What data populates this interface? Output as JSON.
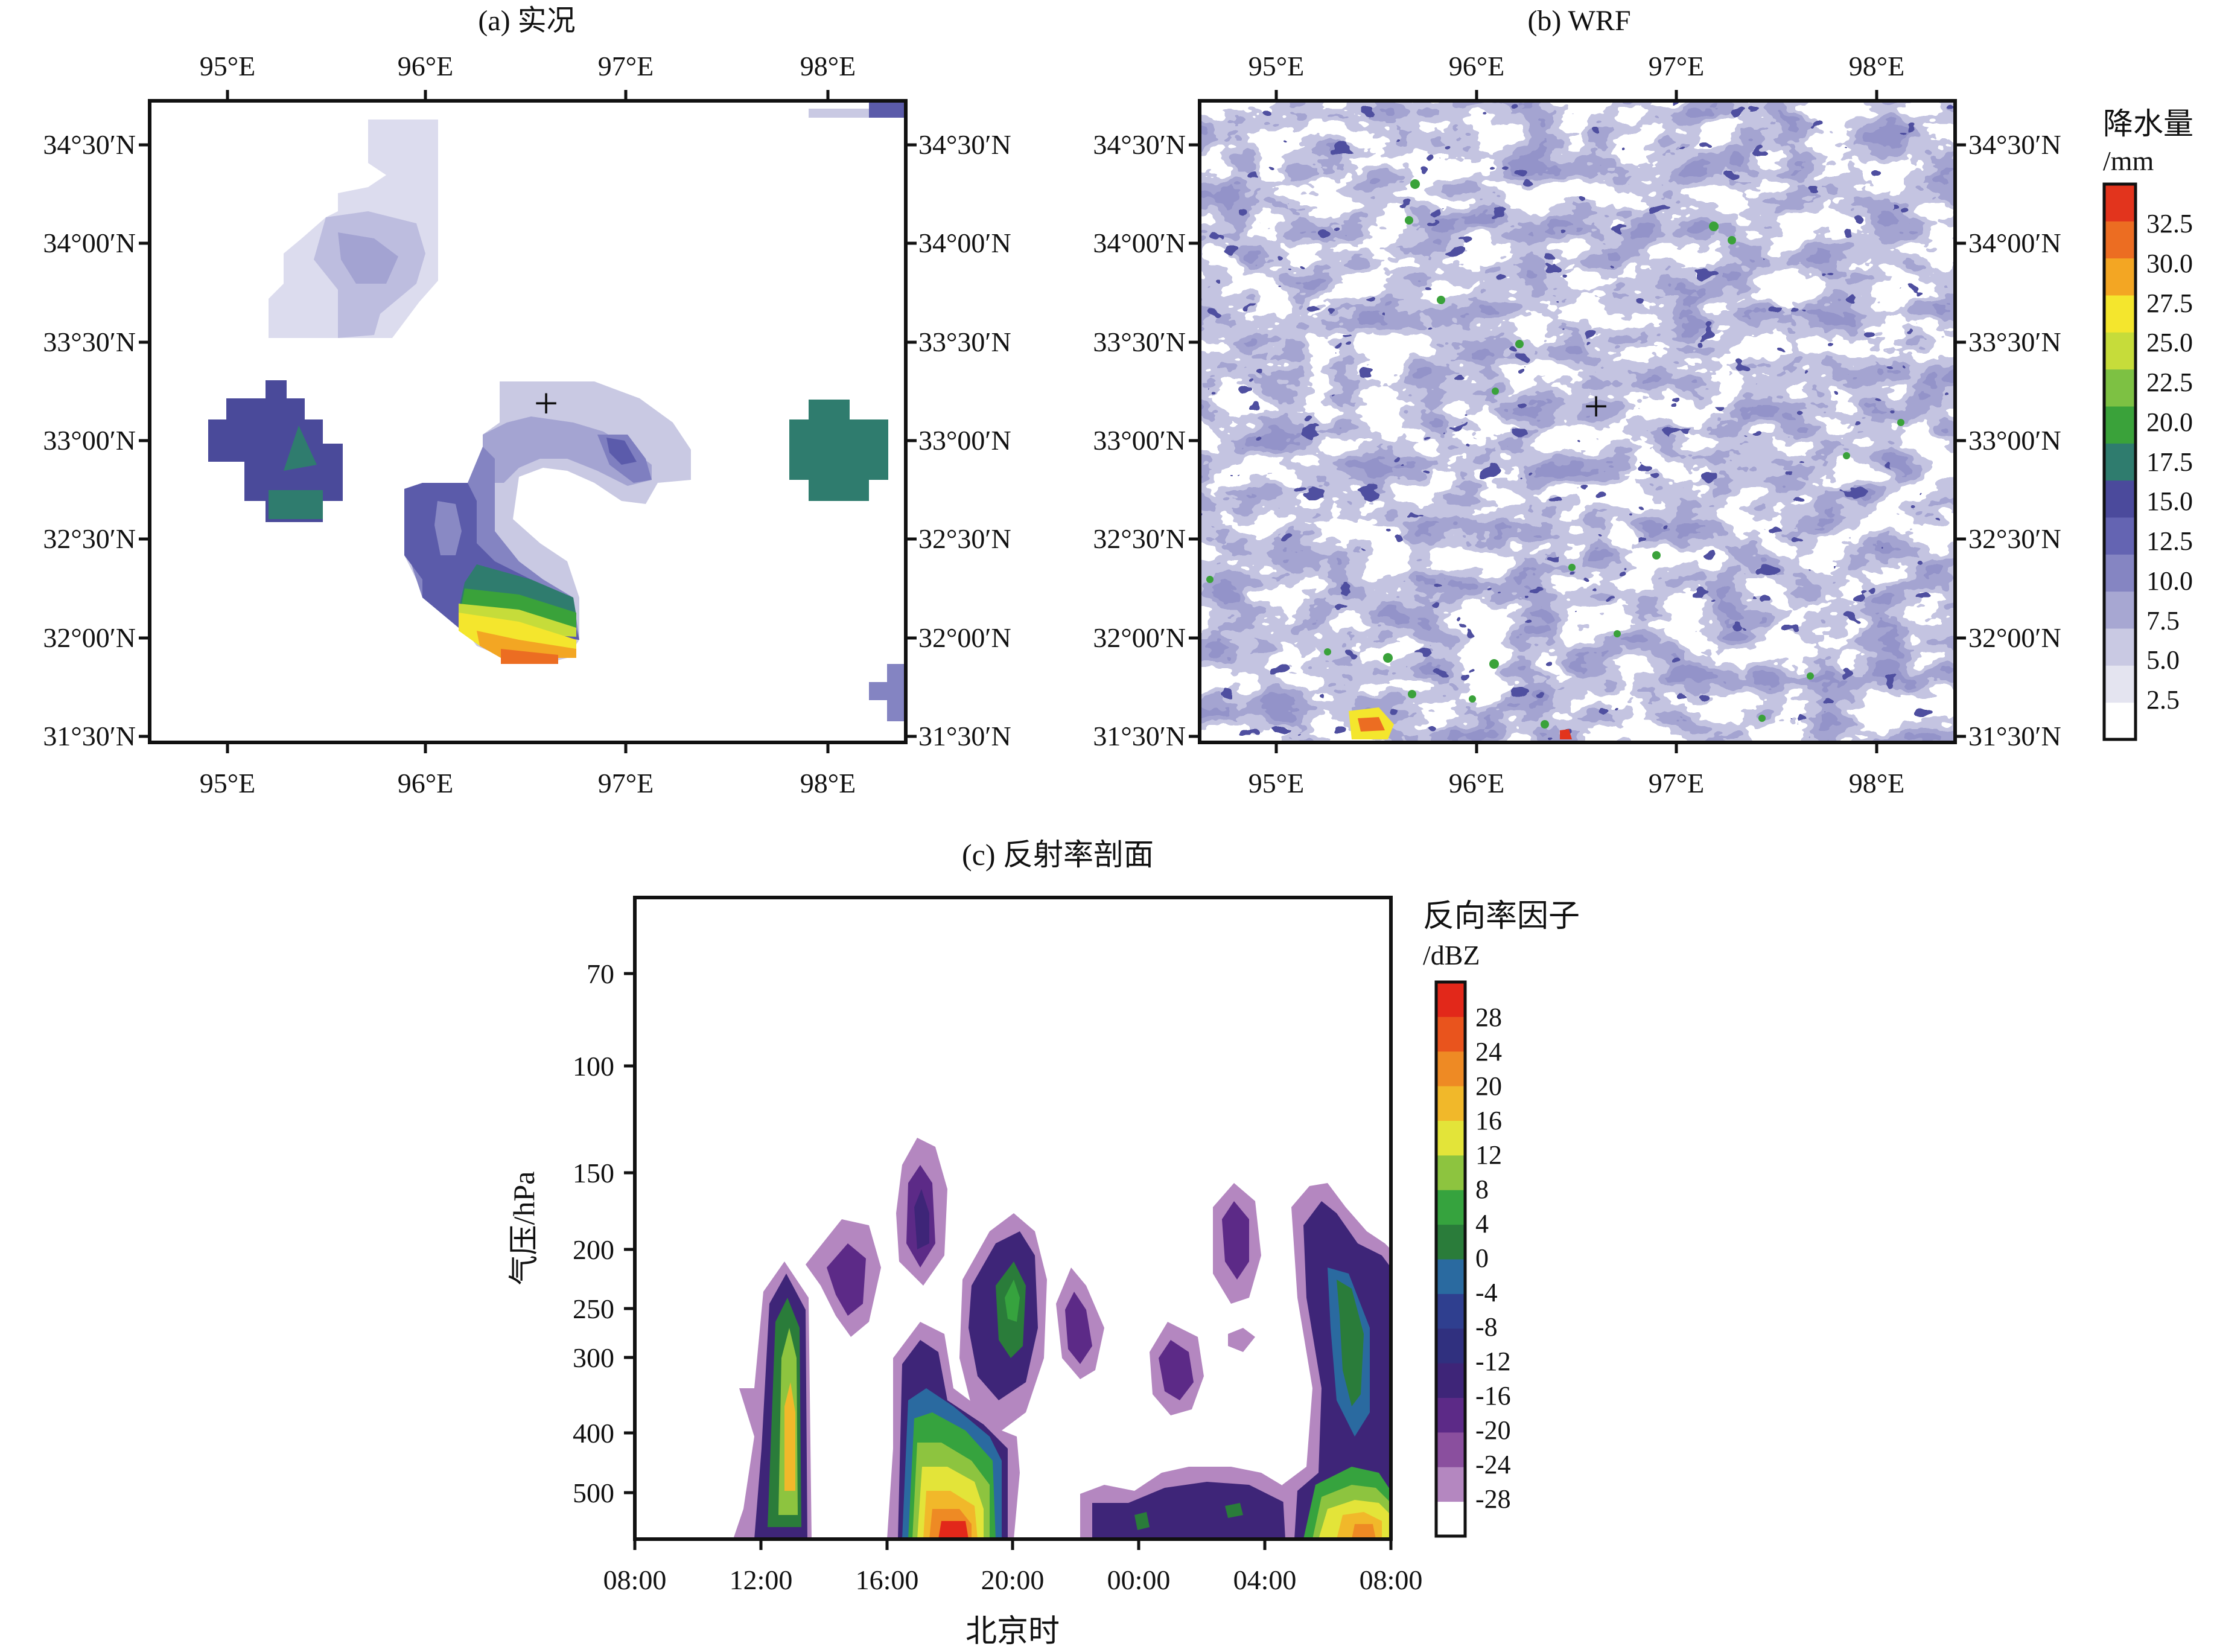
{
  "figure": {
    "font_note": "",
    "colors": {
      "frame": "#111111",
      "precip_scale": [
        "#ffffff",
        "#e4e4f0",
        "#c9c9e3",
        "#a7a7d2",
        "#8585c2",
        "#6464b2",
        "#4b4a9c",
        "#2f7c6e",
        "#3aa23a",
        "#7dc143",
        "#c6dc3a",
        "#f4e62d",
        "#f3a623",
        "#ec6d22",
        "#e2341d"
      ],
      "refl_scale": [
        "#ffffff",
        "#b487c0",
        "#8a4f9e",
        "#5c2a87",
        "#3e2578",
        "#30307f",
        "#2f3f8f",
        "#2a6aa0",
        "#2a7c3a",
        "#36a33e",
        "#8dc43f",
        "#e3e439",
        "#f1b82a",
        "#ee8a24",
        "#e9541d",
        "#e2281a"
      ]
    },
    "marker_symbol": "+"
  },
  "panel_a": {
    "title": "(a) 实况",
    "xticks": [
      "95°E",
      "96°E",
      "97°E",
      "98°E"
    ],
    "yticks": [
      "34°30′N",
      "34°00′N",
      "33°30′N",
      "33°00′N",
      "32°30′N",
      "32°00′N",
      "31°30′N"
    ]
  },
  "panel_b": {
    "title": "(b) WRF",
    "xticks": [
      "95°E",
      "96°E",
      "97°E",
      "98°E"
    ],
    "yticks": [
      "34°30′N",
      "34°00′N",
      "33°30′N",
      "33°00′N",
      "32°30′N",
      "32°00′N",
      "31°30′N"
    ],
    "colorbar": {
      "title_line1": "降水量",
      "title_line2": "/mm",
      "labels": [
        "32.5",
        "30.0",
        "27.5",
        "25.0",
        "22.5",
        "20.0",
        "17.5",
        "15.0",
        "12.5",
        "10.0",
        "7.5",
        "5.0",
        "2.5"
      ]
    }
  },
  "panel_c": {
    "title": "(c) 反射率剖面",
    "xlabel": "北京时",
    "ylabel": "气压/hPa",
    "xticks": [
      "08:00",
      "12:00",
      "16:00",
      "20:00",
      "00:00",
      "04:00",
      "08:00"
    ],
    "yticks": [
      "70",
      "100",
      "150",
      "200",
      "250",
      "300",
      "400",
      "500"
    ],
    "colorbar": {
      "title_line1": "反向率因子",
      "title_line2": "/dBZ",
      "labels": [
        "28",
        "24",
        "20",
        "16",
        "12",
        "8",
        "4",
        "0",
        "-4",
        "-8",
        "-12",
        "-16",
        "-20",
        "-24",
        "-28"
      ]
    }
  },
  "chart_data": [
    {
      "type": "heatmap",
      "title": "(a) 实况",
      "x_range_deg_e": [
        94.65,
        98.4
      ],
      "y_range_deg_n": [
        31.5,
        34.7
      ],
      "xticks": [
        "95°E",
        "96°E",
        "97°E",
        "98°E"
      ],
      "yticks": [
        "34°30′N",
        "34°00′N",
        "33°30′N",
        "33°00′N",
        "32°30′N",
        "32°00′N",
        "31°30′N"
      ],
      "marker_lon_lat": [
        96.6,
        33.18
      ],
      "rain_areas_lon_lat_mm": [
        {
          "region": "north",
          "lon": [
            95.2,
            95.9
          ],
          "lat": [
            33.5,
            34.6
          ],
          "max_mm": 7.5
        },
        {
          "region": "west",
          "lon": [
            94.9,
            95.6
          ],
          "lat": [
            32.6,
            33.3
          ],
          "max_mm": 15.0
        },
        {
          "region": "central",
          "lon": [
            95.9,
            97.3
          ],
          "lat": [
            31.8,
            33.3
          ],
          "max_mm": 32.5
        },
        {
          "region": "east",
          "lon": [
            97.85,
            98.3
          ],
          "lat": [
            32.7,
            33.2
          ],
          "max_mm": 15.0
        }
      ],
      "colorbar_ticks_mm": [
        2.5,
        5.0,
        7.5,
        10.0,
        12.5,
        15.0,
        17.5,
        20.0,
        22.5,
        25.0,
        27.5,
        30.0,
        32.5
      ]
    },
    {
      "type": "heatmap",
      "title": "(b) WRF",
      "x_range_deg_e": [
        94.65,
        98.4
      ],
      "y_range_deg_n": [
        31.5,
        34.7
      ],
      "xticks": [
        "95°E",
        "96°E",
        "97°E",
        "98°E"
      ],
      "yticks": [
        "34°30′N",
        "34°00′N",
        "33°30′N",
        "33°00′N",
        "32°30′N",
        "32°00′N",
        "31°30′N"
      ],
      "marker_lon_lat": [
        96.6,
        33.18
      ],
      "colorbar_ticks_mm": [
        2.5,
        5.0,
        7.5,
        10.0,
        12.5,
        15.0,
        17.5,
        20.0,
        22.5,
        25.0,
        27.5,
        30.0,
        32.5
      ]
    },
    {
      "type": "heatmap",
      "title": "(c) 反射率剖面",
      "xlabel": "北京时",
      "ylabel": "气压/hPa",
      "xticks": [
        "08:00",
        "12:00",
        "16:00",
        "20:00",
        "00:00",
        "04:00",
        "08:00"
      ],
      "y_log_scale": true,
      "y_range_hpa": [
        600,
        55
      ],
      "yticks_hpa": [
        70,
        100,
        150,
        200,
        250,
        300,
        400,
        500
      ],
      "colorbar_ticks_dbz": [
        -28,
        -24,
        -20,
        -16,
        -12,
        -8,
        -4,
        0,
        4,
        8,
        12,
        16,
        20,
        24,
        28
      ],
      "echo_cells_hour_hpa_dbz": [
        {
          "t": [
            11.5,
            13.3
          ],
          "p": [
            250,
            600
          ],
          "max_dbz": 20
        },
        {
          "t": [
            14.5,
            16.0
          ],
          "p": [
            160,
            250
          ],
          "max_dbz": -24
        },
        {
          "t": [
            16.3,
            17.8
          ],
          "p": [
            130,
            200
          ],
          "max_dbz": -20
        },
        {
          "t": [
            16.0,
            20.0
          ],
          "p": [
            280,
            600
          ],
          "max_dbz": 28
        },
        {
          "t": [
            18.5,
            21.0
          ],
          "p": [
            180,
            340
          ],
          "max_dbz": 0
        },
        {
          "t": [
            21.5,
            22.8
          ],
          "p": [
            240,
            320
          ],
          "max_dbz": -16
        },
        {
          "t": [
            24.5,
            25.5
          ],
          "p": [
            290,
            380
          ],
          "max_dbz": -16
        },
        {
          "t": [
            26.5,
            27.8
          ],
          "p": [
            160,
            240
          ],
          "max_dbz": -16
        },
        {
          "t": [
            28.5,
            32.0
          ],
          "p": [
            160,
            600
          ],
          "max_dbz": 24
        },
        {
          "t": [
            22.5,
            28.5
          ],
          "p": [
            480,
            600
          ],
          "max_dbz": -8
        }
      ]
    }
  ]
}
